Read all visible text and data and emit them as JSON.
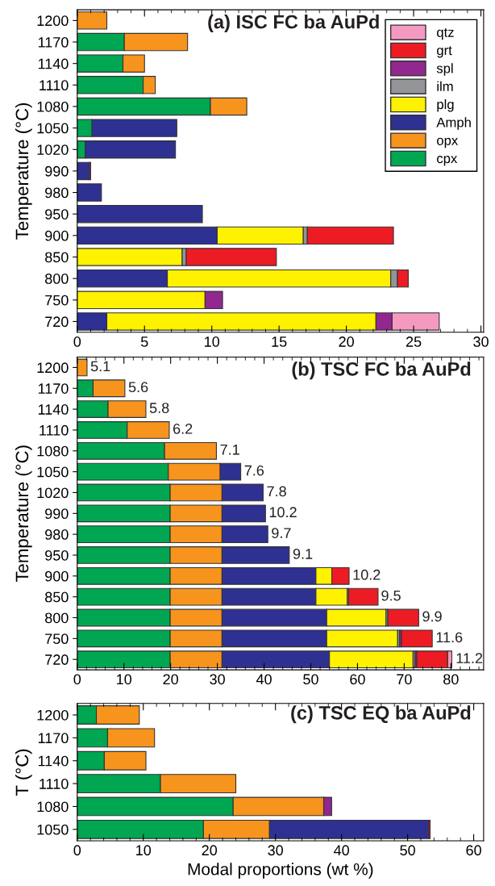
{
  "chart_data": [
    {
      "type": "bar",
      "orientation": "horizontal",
      "stacked": true,
      "title": "(a) ISC FC ba AuPd",
      "ylabel": "Temperature (°C)",
      "categories": [
        "1200",
        "1170",
        "1140",
        "1110",
        "1080",
        "1050",
        "1020",
        "990",
        "980",
        "950",
        "900",
        "850",
        "800",
        "750",
        "720"
      ],
      "xlim": [
        0,
        30.2
      ],
      "xticks": [
        0,
        5,
        10,
        15,
        20,
        25,
        30
      ],
      "legend": "top right",
      "series": [
        {
          "name": "cpx",
          "color": "#00a651",
          "values": [
            null,
            3.5,
            3.4,
            4.9,
            9.9,
            1.1,
            0.6,
            null,
            null,
            null,
            null,
            null,
            null,
            null,
            null
          ]
        },
        {
          "name": "opx",
          "color": "#f7941d",
          "values": [
            2.2,
            4.7,
            1.6,
            0.9,
            2.7,
            null,
            null,
            null,
            null,
            null,
            null,
            null,
            null,
            null,
            null
          ]
        },
        {
          "name": "Amph",
          "color": "#2e3192",
          "values": [
            null,
            null,
            null,
            null,
            null,
            6.3,
            6.7,
            0.9,
            1.8,
            9.3,
            10.4,
            null,
            6.7,
            null,
            2.2
          ]
        },
        {
          "name": "plg",
          "color": "#fff200",
          "values": [
            null,
            null,
            null,
            null,
            null,
            null,
            null,
            null,
            null,
            null,
            6.4,
            7.8,
            16.6,
            9.5,
            20.0
          ]
        },
        {
          "name": "ilm",
          "color": "#939598",
          "values": [
            null,
            null,
            null,
            null,
            null,
            null,
            null,
            null,
            null,
            null,
            0.3,
            0.3,
            0.5,
            null,
            null
          ]
        },
        {
          "name": "spl",
          "color": "#92278f",
          "values": [
            null,
            null,
            null,
            null,
            null,
            null,
            null,
            0.1,
            null,
            null,
            null,
            null,
            null,
            1.3,
            1.2
          ]
        },
        {
          "name": "grt",
          "color": "#ed1c24",
          "values": [
            null,
            null,
            null,
            null,
            null,
            null,
            null,
            null,
            null,
            null,
            6.4,
            6.7,
            0.8,
            null,
            null
          ]
        },
        {
          "name": "qtz",
          "color": "#f49ac1",
          "values": [
            null,
            null,
            null,
            null,
            null,
            null,
            null,
            null,
            null,
            null,
            null,
            null,
            null,
            null,
            3.5
          ]
        }
      ]
    },
    {
      "type": "bar",
      "orientation": "horizontal",
      "stacked": true,
      "title": "(b) TSC FC ba AuPd",
      "ylabel": "Temperature (°C)",
      "categories": [
        "1200",
        "1170",
        "1140",
        "1110",
        "1080",
        "1050",
        "1020",
        "990",
        "980",
        "950",
        "900",
        "850",
        "800",
        "750",
        "720"
      ],
      "xlim": [
        0,
        87
      ],
      "xticks": [
        0,
        10,
        20,
        30,
        40,
        50,
        60,
        70,
        80
      ],
      "series": [
        {
          "color": "#00a651",
          "values": [
            null,
            3.4,
            6.6,
            10.7,
            18.7,
            19.5,
            19.9,
            19.9,
            19.9,
            19.9,
            19.9,
            19.9,
            19.9,
            19.9,
            19.9
          ]
        },
        {
          "color": "#f7941d",
          "values": [
            2.1,
            6.8,
            8.1,
            9.0,
            11.1,
            11.1,
            11.1,
            11.1,
            11.1,
            11.1,
            11.1,
            11.1,
            11.1,
            11.1,
            11.1
          ]
        },
        {
          "color": "#2e3192",
          "values": [
            null,
            null,
            null,
            null,
            null,
            4.4,
            8.8,
            9.3,
            9.8,
            14.4,
            20.1,
            20.1,
            22.4,
            22.4,
            23.0
          ]
        },
        {
          "color": "#fff200",
          "values": [
            null,
            null,
            null,
            null,
            null,
            null,
            null,
            null,
            null,
            null,
            3.4,
            6.7,
            12.7,
            15.2,
            17.9
          ]
        },
        {
          "color": "#939598",
          "values": [
            null,
            null,
            null,
            null,
            null,
            null,
            null,
            null,
            null,
            null,
            null,
            0.3,
            0.4,
            0.4,
            0.4
          ]
        },
        {
          "color": "#92278f",
          "values": [
            null,
            null,
            null,
            null,
            null,
            null,
            null,
            null,
            null,
            null,
            null,
            null,
            null,
            0.4,
            0.4
          ]
        },
        {
          "color": "#ed1c24",
          "values": [
            null,
            null,
            null,
            null,
            null,
            null,
            null,
            null,
            null,
            null,
            3.7,
            6.3,
            6.6,
            6.6,
            6.6
          ]
        },
        {
          "color": "#f49ac1",
          "values": [
            null,
            null,
            null,
            null,
            null,
            null,
            null,
            null,
            null,
            null,
            null,
            null,
            null,
            null,
            0.9
          ]
        }
      ],
      "annotations": [
        {
          "text": "5.1",
          "x": 2.1,
          "y": "1200"
        },
        {
          "text": "5.6",
          "x": 10.2,
          "y": "1170"
        },
        {
          "text": "5.8",
          "x": 14.7,
          "y": "1140"
        },
        {
          "text": "6.2",
          "x": 19.7,
          "y": "1110"
        },
        {
          "text": "7.1",
          "x": 29.8,
          "y": "1080"
        },
        {
          "text": "7.6",
          "x": 35.0,
          "y": "1050"
        },
        {
          "text": "7.8",
          "x": 39.8,
          "y": "1020"
        },
        {
          "text": "10.2",
          "x": 40.3,
          "y": "990"
        },
        {
          "text": "9.7",
          "x": 40.8,
          "y": "980"
        },
        {
          "text": "9.1",
          "x": 45.4,
          "y": "950"
        },
        {
          "text": "10.2",
          "x": 58.2,
          "y": "900"
        },
        {
          "text": "9.5",
          "x": 64.3,
          "y": "850"
        },
        {
          "text": "9.9",
          "x": 73.1,
          "y": "800"
        },
        {
          "text": "11.6",
          "x": 76.0,
          "y": "750"
        },
        {
          "text": "11.2",
          "x": 80.3,
          "y": "720"
        }
      ]
    },
    {
      "type": "bar",
      "orientation": "horizontal",
      "stacked": true,
      "title": "(c) TSC EQ ba AuPd",
      "ylabel": "T (°C)",
      "xlabel": "Modal proportions (wt %)",
      "categories": [
        "1200",
        "1170",
        "1140",
        "1110",
        "1080",
        "1050"
      ],
      "xlim": [
        0,
        61.5
      ],
      "xticks": [
        0,
        10,
        20,
        30,
        40,
        50,
        60
      ],
      "series": [
        {
          "color": "#00a651",
          "values": [
            2.9,
            4.6,
            4.1,
            12.6,
            23.6,
            19.1
          ]
        },
        {
          "color": "#f7941d",
          "values": [
            6.5,
            7.1,
            6.3,
            11.4,
            13.7,
            10.0
          ]
        },
        {
          "color": "#2e3192",
          "values": [
            null,
            null,
            null,
            null,
            null,
            24.1
          ]
        },
        {
          "color": "#92278f",
          "values": [
            null,
            null,
            null,
            null,
            1.2,
            null
          ]
        },
        {
          "color": "#ed1c24",
          "values": [
            null,
            null,
            null,
            null,
            null,
            0.2
          ]
        }
      ]
    }
  ]
}
